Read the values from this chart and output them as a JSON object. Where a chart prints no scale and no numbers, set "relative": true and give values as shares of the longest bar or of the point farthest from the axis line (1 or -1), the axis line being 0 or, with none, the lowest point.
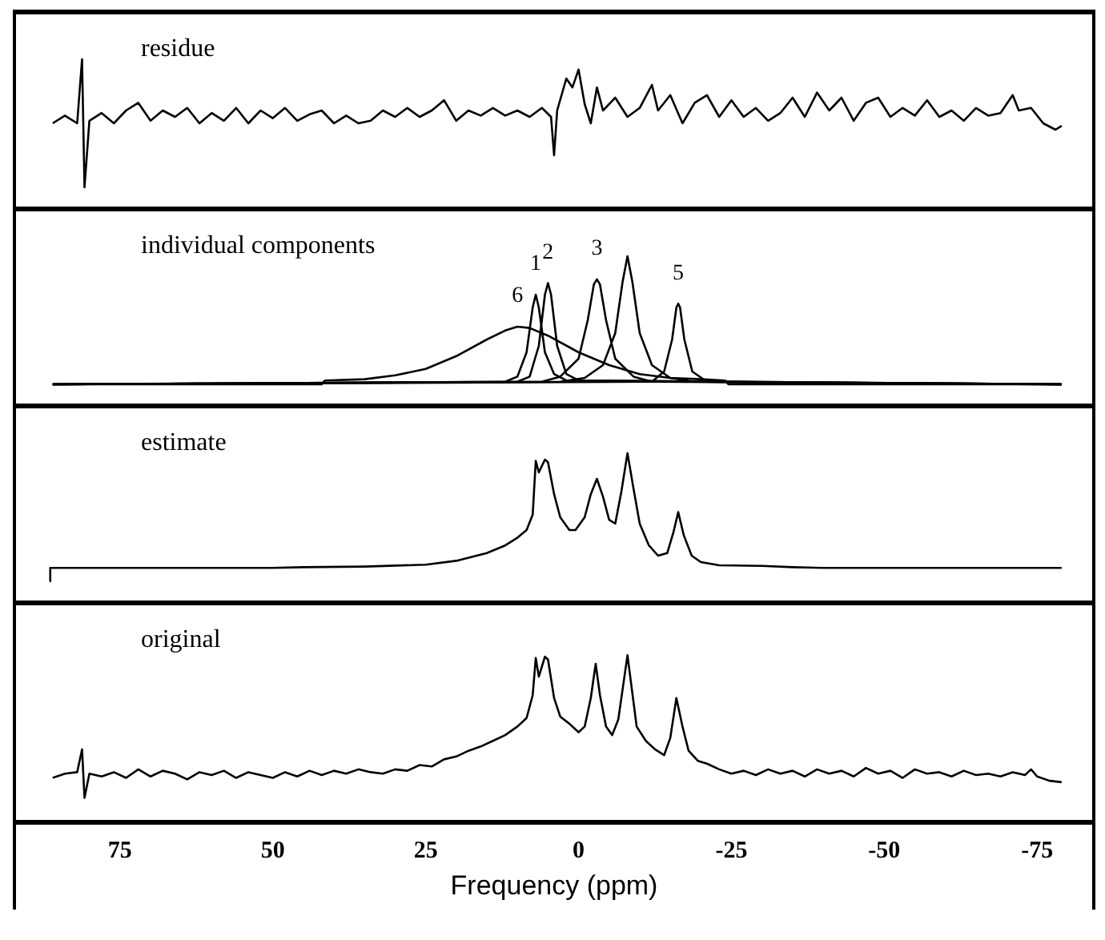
{
  "chart_data": [
    {
      "type": "line",
      "title": "residue",
      "relative": true,
      "xlim": [
        92,
        -84
      ],
      "tick_labels": false,
      "series": [
        {
          "color": "#000000",
          "x": [
            86,
            84,
            82,
            81.2,
            80.8,
            80,
            78,
            76,
            74,
            72,
            70,
            68,
            66,
            64,
            62,
            60,
            58,
            56,
            54,
            52,
            50,
            48,
            46,
            44,
            42,
            40,
            38,
            36,
            34,
            32,
            30,
            28,
            26,
            24,
            22,
            20,
            18,
            16,
            14,
            12,
            10,
            8,
            6,
            4.5,
            4,
            3.5,
            2,
            1,
            0,
            -1,
            -2,
            -3,
            -4,
            -6,
            -8,
            -10,
            -12,
            -13,
            -15,
            -17,
            -19,
            -21,
            -23,
            -25,
            -27,
            -29,
            -31,
            -33,
            -35,
            -37,
            -39,
            -41,
            -43,
            -45,
            -47,
            -49,
            -51,
            -53,
            -55,
            -57,
            -59,
            -61,
            -63,
            -65,
            -67,
            -69,
            -71,
            -72,
            -74,
            -76,
            -78,
            -79
          ],
          "values": [
            0.5,
            0.56,
            0.5,
            1.0,
            0.0,
            0.52,
            0.58,
            0.5,
            0.6,
            0.66,
            0.52,
            0.6,
            0.55,
            0.62,
            0.5,
            0.58,
            0.52,
            0.62,
            0.5,
            0.6,
            0.54,
            0.62,
            0.52,
            0.57,
            0.6,
            0.5,
            0.56,
            0.5,
            0.52,
            0.6,
            0.55,
            0.62,
            0.55,
            0.6,
            0.68,
            0.52,
            0.6,
            0.56,
            0.62,
            0.56,
            0.6,
            0.55,
            0.62,
            0.55,
            0.25,
            0.6,
            0.85,
            0.78,
            0.92,
            0.65,
            0.5,
            0.78,
            0.6,
            0.7,
            0.55,
            0.62,
            0.8,
            0.6,
            0.72,
            0.5,
            0.66,
            0.72,
            0.55,
            0.68,
            0.55,
            0.62,
            0.52,
            0.58,
            0.7,
            0.55,
            0.74,
            0.6,
            0.7,
            0.52,
            0.66,
            0.7,
            0.55,
            0.62,
            0.56,
            0.68,
            0.55,
            0.6,
            0.52,
            0.62,
            0.56,
            0.58,
            0.72,
            0.6,
            0.62,
            0.5,
            0.45,
            0.48
          ]
        }
      ]
    },
    {
      "type": "line",
      "title": "individual components",
      "relative": true,
      "xlim": [
        92,
        -84
      ],
      "tick_labels": false,
      "annotations": [
        {
          "text": "6",
          "x": 10,
          "y": 0.45
        },
        {
          "text": "1",
          "x": 7,
          "y": 0.7
        },
        {
          "text": "2",
          "x": 5,
          "y": 0.79
        },
        {
          "text": "3",
          "x": -3,
          "y": 0.82
        },
        {
          "text": "5",
          "x": -16.3,
          "y": 0.63
        }
      ],
      "series": [
        {
          "color": "#000000",
          "x": [
            86,
            12,
            10,
            8.5,
            7.5,
            7,
            6.5,
            5.5,
            4,
            2,
            -79
          ],
          "values": [
            0,
            0.02,
            0.06,
            0.25,
            0.6,
            0.7,
            0.6,
            0.25,
            0.08,
            0.03,
            0
          ]
        },
        {
          "color": "#000000",
          "x": [
            86,
            10,
            8,
            6.5,
            5.5,
            5,
            4.5,
            3.5,
            2,
            0,
            -79
          ],
          "values": [
            0,
            0.02,
            0.06,
            0.3,
            0.7,
            0.79,
            0.7,
            0.3,
            0.08,
            0.03,
            0
          ]
        },
        {
          "color": "#000000",
          "x": [
            86,
            6,
            3,
            0,
            -1.5,
            -2.5,
            -3,
            -3.5,
            -4.5,
            -6,
            -9,
            -12,
            -79
          ],
          "values": [
            0,
            0.02,
            0.06,
            0.2,
            0.5,
            0.78,
            0.82,
            0.78,
            0.5,
            0.2,
            0.06,
            0.02,
            0
          ]
        },
        {
          "color": "#000000",
          "x": [
            86,
            3,
            -1,
            -4,
            -6,
            -7.2,
            -8,
            -8.8,
            -10,
            -12,
            -15,
            -19,
            -79
          ],
          "values": [
            0,
            0.02,
            0.05,
            0.15,
            0.4,
            0.8,
            1.0,
            0.8,
            0.4,
            0.15,
            0.05,
            0.02,
            0
          ]
        },
        {
          "color": "#000000",
          "x": [
            86,
            -12,
            -14,
            -15.3,
            -16,
            -16.3,
            -16.6,
            -17.3,
            -18.6,
            -21,
            -79
          ],
          "values": [
            0,
            0.02,
            0.1,
            0.35,
            0.6,
            0.63,
            0.6,
            0.35,
            0.1,
            0.02,
            0
          ]
        },
        {
          "color": "#000000",
          "x": [
            86,
            42,
            41.5,
            35,
            30,
            25,
            20,
            15,
            12,
            10,
            8,
            5,
            0,
            -5,
            -10,
            -15,
            -20,
            -24,
            -24.5,
            -79
          ],
          "values": [
            0,
            0,
            0.03,
            0.04,
            0.07,
            0.12,
            0.22,
            0.35,
            0.42,
            0.45,
            0.44,
            0.38,
            0.25,
            0.15,
            0.08,
            0.05,
            0.04,
            0.03,
            0,
            0
          ]
        }
      ]
    },
    {
      "type": "line",
      "title": "estimate",
      "relative": true,
      "xlim": [
        92,
        -84
      ],
      "tick_labels": false,
      "series": [
        {
          "color": "#000000",
          "x": [
            86.5,
            86.4,
            50,
            45,
            35,
            25,
            20,
            15,
            12,
            10,
            8.5,
            7.5,
            7,
            6.5,
            5.5,
            5,
            4,
            3,
            1.5,
            0.5,
            -1,
            -2,
            -3,
            -4,
            -5,
            -6,
            -7,
            -8,
            -9,
            -10,
            -11.5,
            -13,
            -14.5,
            -15.5,
            -16.3,
            -17.2,
            -18.5,
            -20,
            -23,
            -30,
            -35,
            -40,
            -79
          ],
          "values": [
            0,
            0.105,
            0.105,
            0.11,
            0.115,
            0.13,
            0.16,
            0.22,
            0.28,
            0.34,
            0.4,
            0.52,
            0.94,
            0.85,
            0.95,
            0.93,
            0.68,
            0.5,
            0.4,
            0.4,
            0.5,
            0.68,
            0.8,
            0.66,
            0.48,
            0.45,
            0.7,
            1.0,
            0.72,
            0.45,
            0.28,
            0.2,
            0.22,
            0.38,
            0.54,
            0.36,
            0.2,
            0.15,
            0.125,
            0.12,
            0.11,
            0.105,
            0.105
          ]
        }
      ]
    },
    {
      "type": "line",
      "title": "original",
      "relative": true,
      "xlim": [
        92,
        -84
      ],
      "xticks": [
        75,
        50,
        25,
        0,
        -25,
        -50,
        -75
      ],
      "xlabel": "Frequency (ppm)",
      "tick_labels": "x",
      "series": [
        {
          "color": "#000000",
          "x": [
            86,
            84,
            82,
            81.2,
            80.8,
            80,
            78,
            76,
            74,
            72,
            70,
            68,
            66,
            64,
            62,
            60,
            58,
            56,
            54,
            52,
            50,
            48,
            46,
            44,
            42,
            40,
            38,
            36,
            34,
            32,
            30,
            28,
            26,
            24,
            22,
            20,
            18,
            16,
            14,
            12,
            10,
            8.5,
            7.5,
            7,
            6.5,
            5.5,
            5,
            4,
            3,
            1.5,
            0,
            -1,
            -2,
            -2.8,
            -3.5,
            -4.5,
            -5.5,
            -6.5,
            -7.5,
            -8,
            -8.6,
            -9.5,
            -11,
            -12.5,
            -14,
            -15,
            -16,
            -17,
            -18,
            -19.5,
            -21,
            -23,
            -25,
            -27,
            -29,
            -31,
            -33,
            -35,
            -37,
            -39,
            -41,
            -43,
            -45,
            -47,
            -49,
            -51,
            -53,
            -55,
            -57,
            -59,
            -61,
            -63,
            -65,
            -67,
            -69,
            -71,
            -73,
            -74,
            -75,
            -77,
            -79
          ],
          "values": [
            0.14,
            0.17,
            0.18,
            0.34,
            0.0,
            0.17,
            0.15,
            0.18,
            0.14,
            0.2,
            0.15,
            0.19,
            0.17,
            0.13,
            0.18,
            0.16,
            0.19,
            0.14,
            0.18,
            0.16,
            0.14,
            0.18,
            0.15,
            0.19,
            0.16,
            0.19,
            0.17,
            0.2,
            0.18,
            0.17,
            0.2,
            0.19,
            0.23,
            0.22,
            0.27,
            0.29,
            0.33,
            0.36,
            0.4,
            0.44,
            0.5,
            0.56,
            0.72,
            0.98,
            0.85,
            0.99,
            0.97,
            0.7,
            0.57,
            0.52,
            0.46,
            0.5,
            0.7,
            0.94,
            0.72,
            0.5,
            0.44,
            0.55,
            0.85,
            1.0,
            0.8,
            0.5,
            0.4,
            0.34,
            0.3,
            0.42,
            0.7,
            0.5,
            0.33,
            0.26,
            0.24,
            0.2,
            0.17,
            0.19,
            0.16,
            0.2,
            0.17,
            0.19,
            0.15,
            0.2,
            0.17,
            0.19,
            0.15,
            0.21,
            0.17,
            0.19,
            0.14,
            0.2,
            0.17,
            0.18,
            0.15,
            0.19,
            0.16,
            0.17,
            0.15,
            0.18,
            0.16,
            0.2,
            0.15,
            0.12,
            0.11
          ]
        }
      ]
    }
  ]
}
